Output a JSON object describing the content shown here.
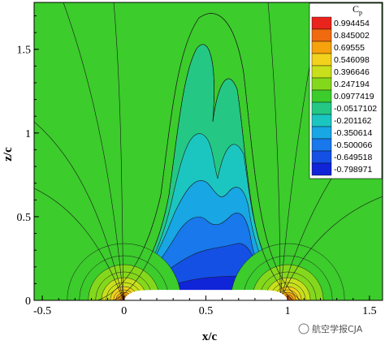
{
  "chart_data": {
    "type": "contour",
    "xlabel": "x/c",
    "ylabel": "z/c",
    "xlim": [
      -0.55,
      1.58
    ],
    "ylim": [
      0,
      1.78
    ],
    "x_ticks": [
      -0.5,
      0,
      0.5,
      1,
      1.5
    ],
    "x_tick_labels": [
      "-0.5",
      "0",
      "0.5",
      "1",
      "1.5"
    ],
    "y_ticks": [
      0,
      0.5,
      1,
      1.5
    ],
    "y_tick_labels": [
      "0",
      "0.5",
      "1",
      "1.5"
    ],
    "legend": {
      "title_main": "C",
      "title_sub": "p",
      "placement": "top-right",
      "levels": [
        "0.994454",
        "0.845002",
        "0.69555",
        "0.546098",
        "0.396646",
        "0.247194",
        "0.0977419",
        "-0.0517102",
        "-0.201162",
        "-0.350614",
        "-0.500066",
        "-0.649518",
        "-0.798971"
      ],
      "colors": [
        "#e8241c",
        "#f06a10",
        "#f5a20c",
        "#f2d21c",
        "#c8e01c",
        "#84d81c",
        "#3ccc2c",
        "#24c884",
        "#1cc6c0",
        "#18a6e4",
        "#1878ec",
        "#1450e4",
        "#1024d8"
      ]
    },
    "body": {
      "x_start": 0,
      "x_end": 1,
      "max_height": 0.06
    },
    "background_color": "#3ccc2c",
    "watermark": "航空学报CJA"
  }
}
